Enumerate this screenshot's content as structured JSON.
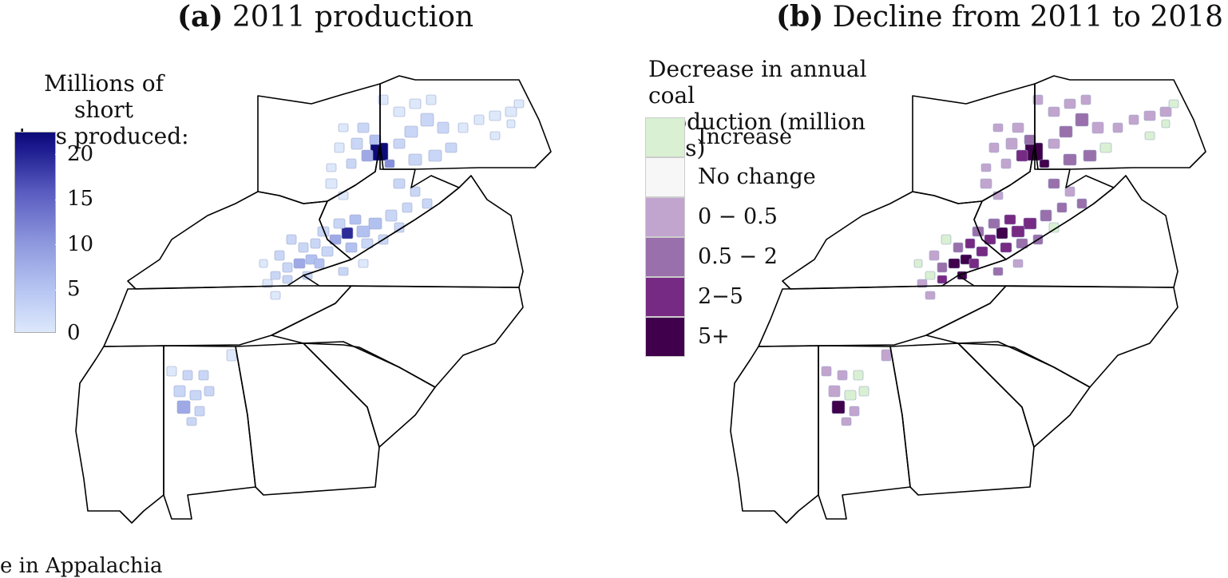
{
  "panel_a": {
    "title_bold": "(a)",
    "title_rest": " 2011 production",
    "legend_title_line1": "Millions of short",
    "legend_title_line2": "tons produced:",
    "colorbar_ticks": [
      "20",
      "15",
      "10",
      "5",
      "0"
    ],
    "colorbar_min": 0,
    "colorbar_max": 22,
    "colors": {
      "low": "#dde8fb",
      "mid": "#8d97dd",
      "high": "#0d0b78"
    }
  },
  "panel_b": {
    "title_bold": "(b)",
    "title_rest": " Decline from 2011 to 2018",
    "legend_title_line1": "Decrease in annual coal",
    "legend_title_line2": "production (million tons)",
    "legend_items": [
      {
        "label": "Increase",
        "color": "#d9f0d3"
      },
      {
        "label": "No change",
        "color": "#f7f7f7"
      },
      {
        "label": "0 − 0.5",
        "color": "#c2a5cf"
      },
      {
        "label": "0.5 − 2",
        "color": "#9970ab"
      },
      {
        "label": "2−5",
        "color": "#762a83"
      },
      {
        "label": "5+",
        "color": "#40004b"
      }
    ]
  },
  "caption": "e in Appalachia"
}
